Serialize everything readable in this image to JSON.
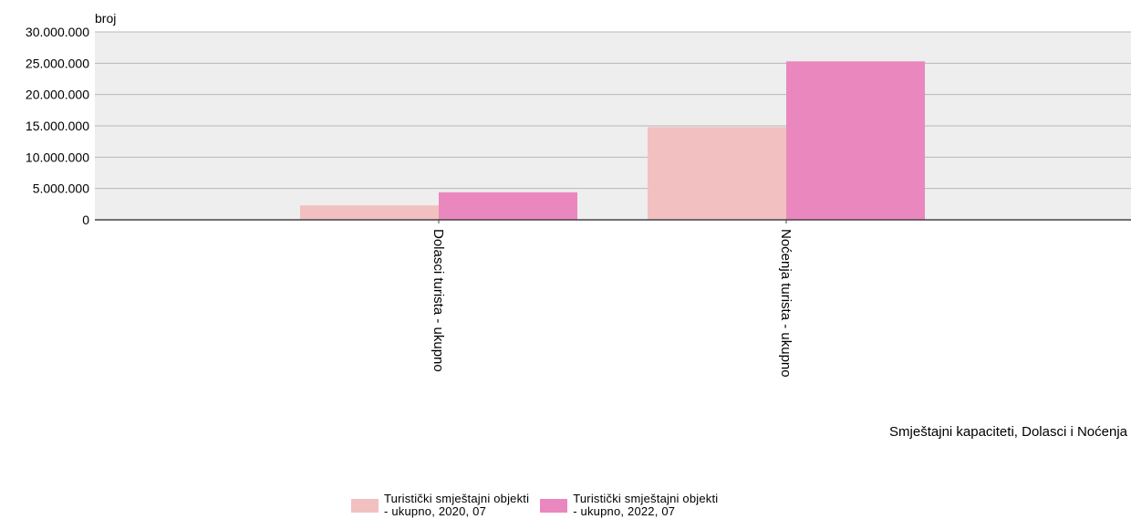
{
  "chart_data": {
    "type": "bar",
    "ylabel": "broj",
    "xlabel": "Smještajni kapaciteti, Dolasci i Noćenja",
    "categories": [
      "Dolasci turista - ukupno",
      "Noćenja turista - ukupno"
    ],
    "series": [
      {
        "name": "Turistički smještajni objekti\n- ukupno, 2020, 07",
        "color": "#f2c0c0",
        "values": [
          2300000,
          14800000
        ]
      },
      {
        "name": "Turistički smještajni objekti\n- ukupno, 2022, 07",
        "color": "#ea87be",
        "values": [
          4400000,
          25300000
        ]
      }
    ],
    "ylim": [
      0,
      30000000
    ],
    "yticks": [
      "0",
      "5.000.000",
      "10.000.000",
      "15.000.000",
      "20.000.000",
      "25.000.000",
      "30.000.000"
    ],
    "grid": true,
    "legend_position": "bottom"
  }
}
